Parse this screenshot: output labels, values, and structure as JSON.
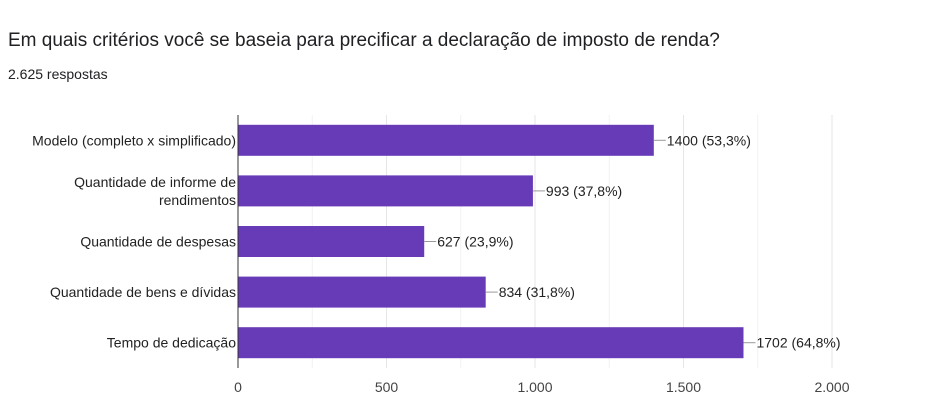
{
  "question": {
    "title": "Em quais critérios você se baseia para precificar a declaração de imposto de renda?",
    "responses": "2.625 respostas"
  },
  "colors": {
    "bar": "#673ab7",
    "grid": "#e6e6e6",
    "axis": "#333333",
    "text": "#222222"
  },
  "chart_data": {
    "type": "bar",
    "orientation": "horizontal",
    "categories": [
      [
        "Modelo (completo x simplificado)"
      ],
      [
        "Quantidade de informe de",
        "rendimentos"
      ],
      [
        "Quantidade de despesas"
      ],
      [
        "Quantidade de bens e dívidas"
      ],
      [
        "Tempo de dedicação"
      ]
    ],
    "values": [
      1400,
      993,
      627,
      834,
      1702
    ],
    "data_labels": [
      "1400 (53,3%)",
      "993 (37,8%)",
      "627 (23,9%)",
      "834 (31,8%)",
      "1702 (64,8%)"
    ],
    "xlim": [
      0,
      2000
    ],
    "xticks": [
      0,
      500,
      1000,
      1500,
      2000
    ],
    "xtick_labels": [
      "0",
      "500",
      "1.000",
      "1.500",
      "2.000"
    ],
    "grid": true
  }
}
